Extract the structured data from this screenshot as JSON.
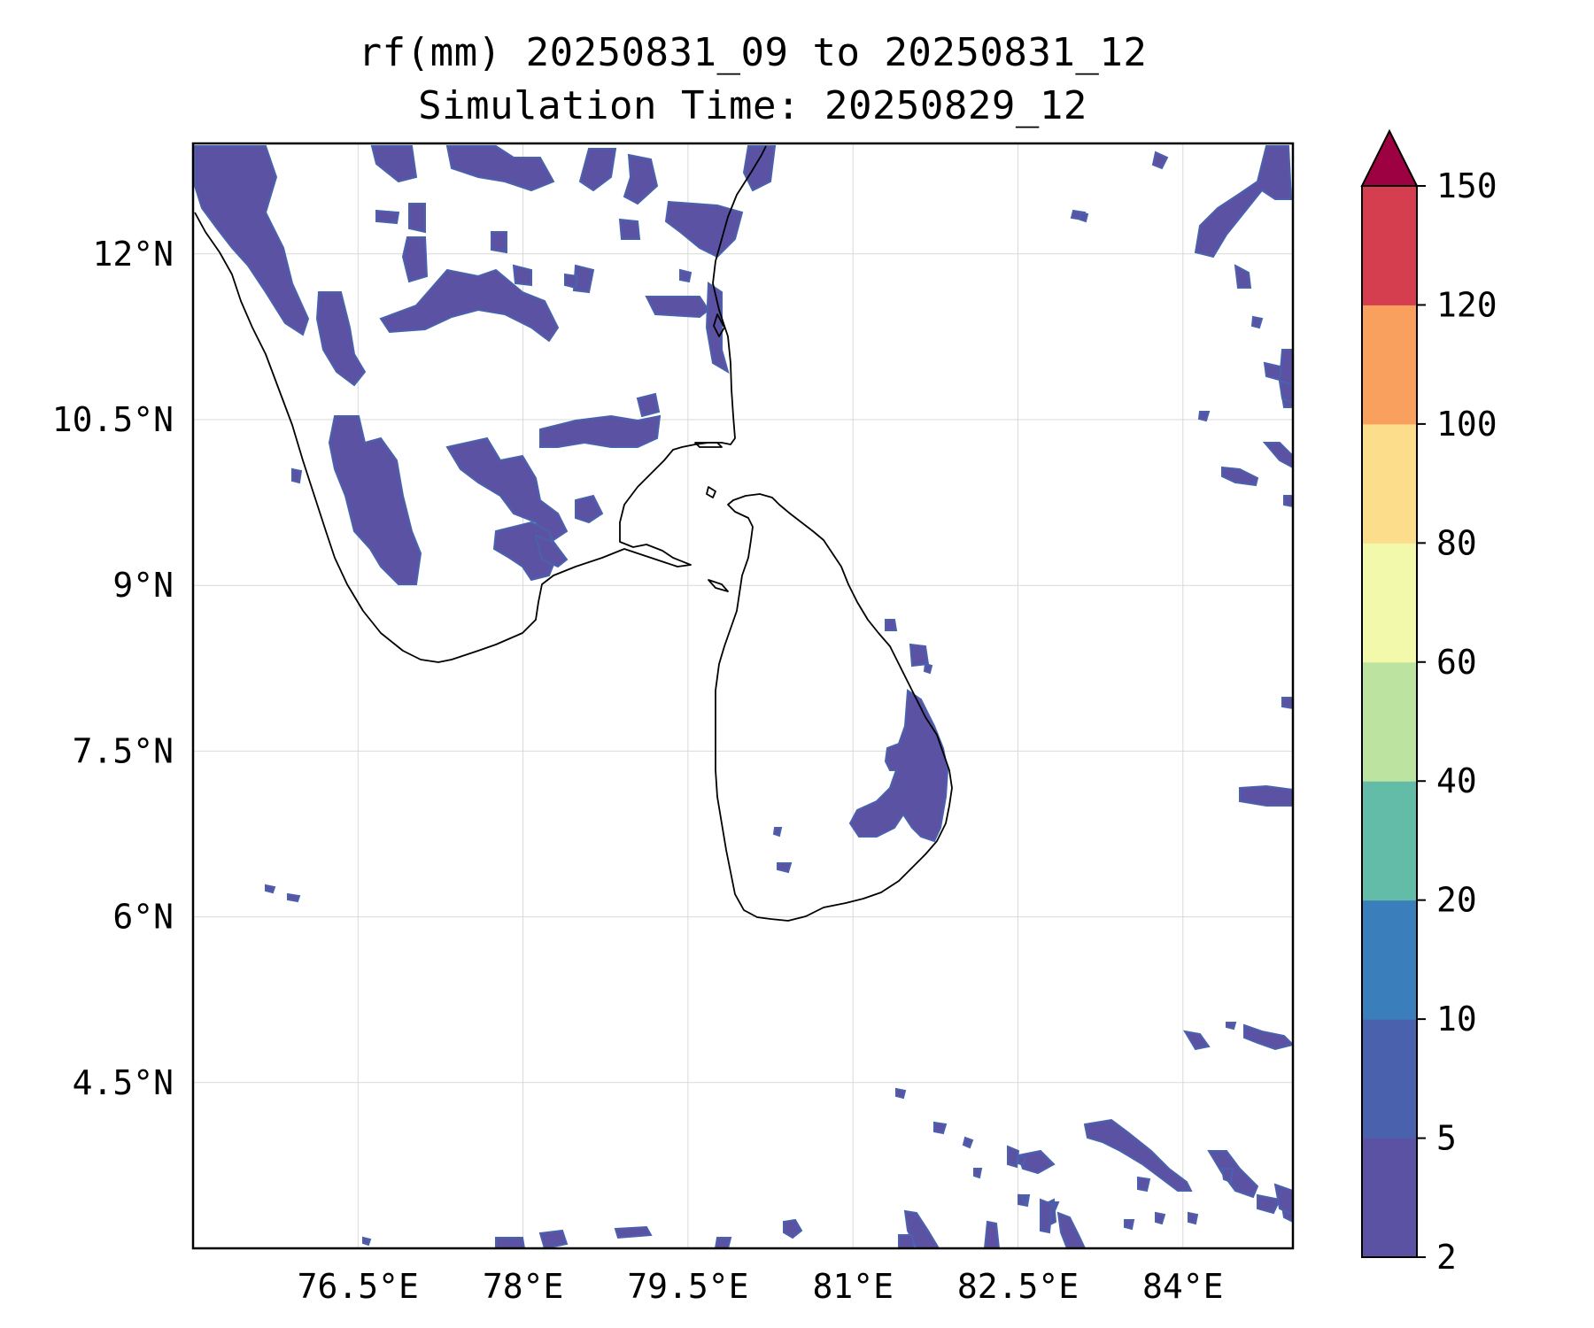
{
  "title": {
    "line1": "rf(mm) 20250831_09 to 20250831_12",
    "line2": "Simulation Time: 20250829_12"
  },
  "map": {
    "lon_range": [
      75.0,
      85.0
    ],
    "lat_range": [
      3.0,
      13.0
    ],
    "x_ticks": [
      "76.5°E",
      "78°E",
      "79.5°E",
      "81°E",
      "82.5°E",
      "84°E"
    ],
    "y_ticks": [
      "12°N",
      "10.5°N",
      "9°N",
      "7.5°N",
      "6°N",
      "4.5°N"
    ],
    "grid": true,
    "coastline_color": "#000000",
    "rain_color_main": "#5b52a4",
    "rain_color_inner": "#4a62ad"
  },
  "colorbar": {
    "extend": "max",
    "levels": [
      "2",
      "5",
      "10",
      "20",
      "40",
      "60",
      "80",
      "100",
      "120",
      "150"
    ],
    "colors": [
      "#5b52a4",
      "#4a62ad",
      "#3a7fbc",
      "#62bca8",
      "#bde3a0",
      "#f3f9aa",
      "#fbdd8c",
      "#f9a05e",
      "#d53e4f",
      "#9e0142"
    ]
  }
}
